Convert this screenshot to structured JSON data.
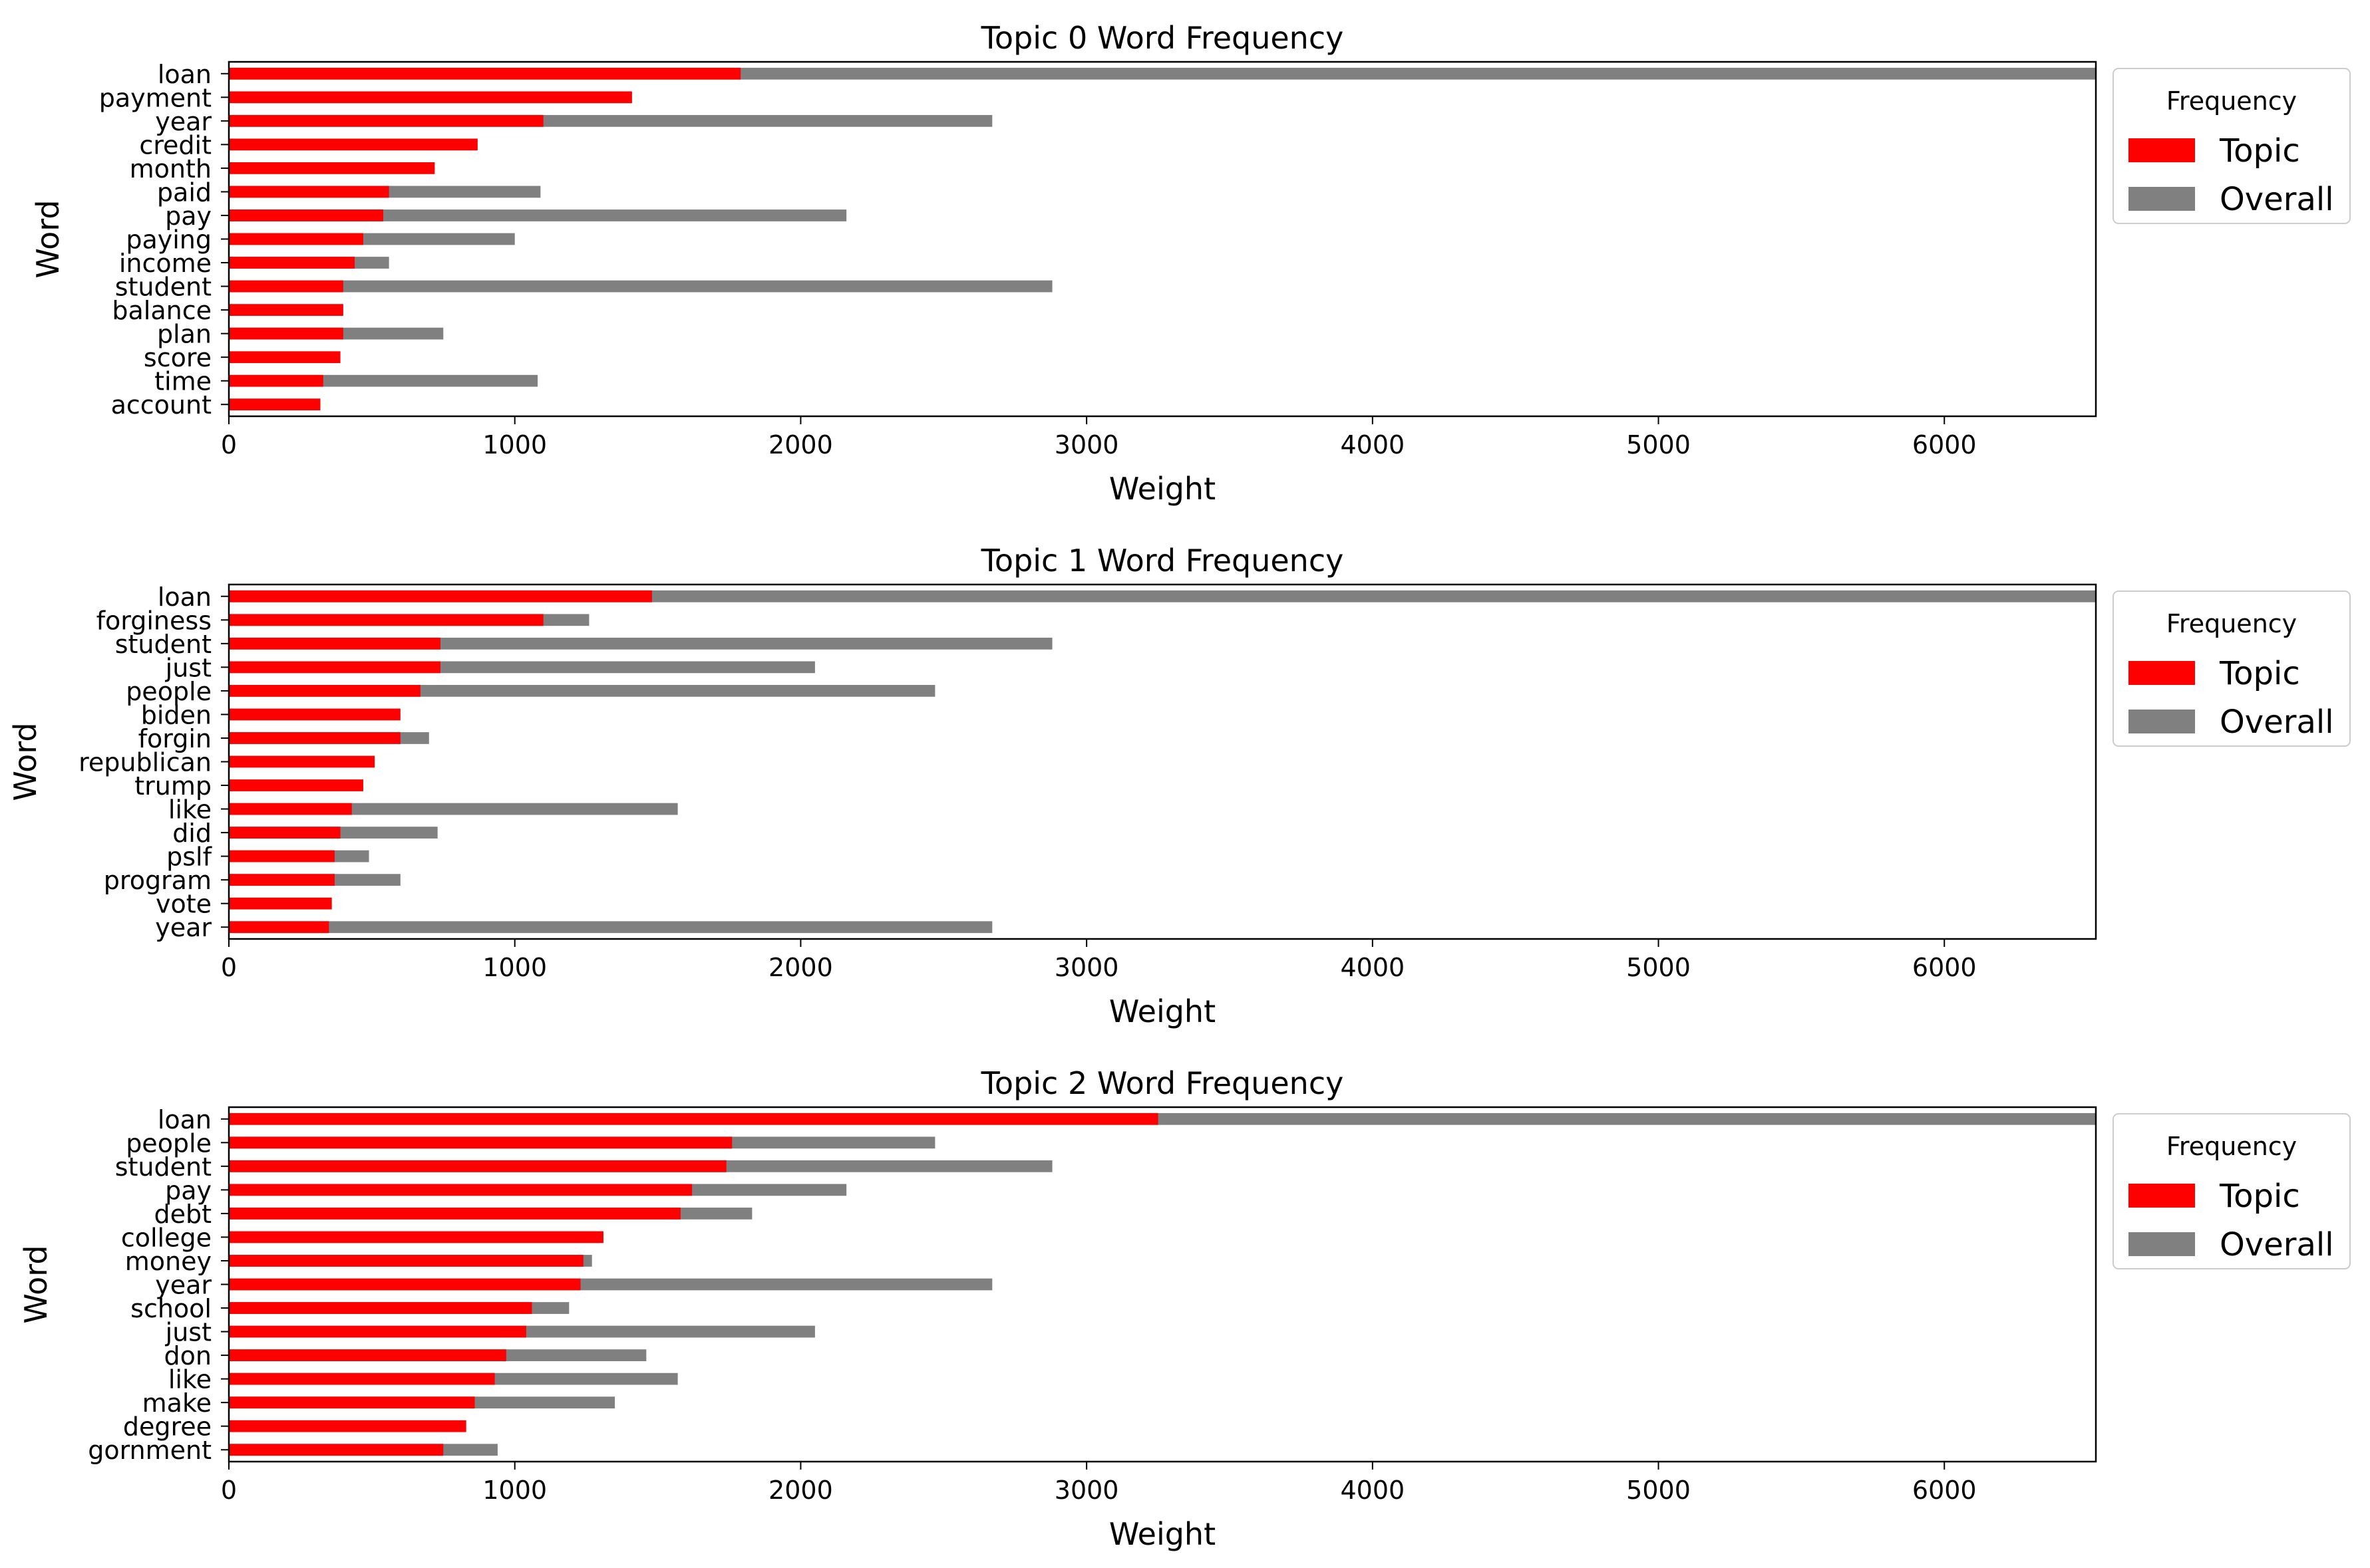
{
  "colors": {
    "topic": "#ff0000",
    "overall": "#808080",
    "axis": "#000000",
    "legend_border": "#cccccc"
  },
  "legend": {
    "title": "Frequency",
    "entries": [
      "Topic",
      "Overall"
    ]
  },
  "chart_data": [
    {
      "type": "bar",
      "orientation": "horizontal",
      "stacking": "overlay",
      "title": "Topic 0 Word Frequency",
      "xlabel": "Weight",
      "ylabel": "Word",
      "xlim": [
        0,
        6530
      ],
      "xticks": [
        0,
        1000,
        2000,
        3000,
        4000,
        5000,
        6000
      ],
      "legend_position": "right, upper",
      "categories": [
        "loan",
        "payment",
        "year",
        "credit",
        "month",
        "paid",
        "pay",
        "paying",
        "income",
        "student",
        "balance",
        "plan",
        "score",
        "time",
        "account"
      ],
      "series": [
        {
          "name": "Topic",
          "values": [
            1790,
            1410,
            1100,
            870,
            720,
            560,
            540,
            470,
            440,
            400,
            400,
            400,
            390,
            330,
            320
          ]
        },
        {
          "name": "Overall",
          "values": [
            6530,
            0,
            2670,
            0,
            0,
            1090,
            2160,
            1000,
            560,
            2880,
            0,
            750,
            0,
            1080,
            0
          ]
        }
      ]
    },
    {
      "type": "bar",
      "orientation": "horizontal",
      "stacking": "overlay",
      "title": "Topic 1 Word Frequency",
      "xlabel": "Weight",
      "ylabel": "Word",
      "xlim": [
        0,
        6530
      ],
      "xticks": [
        0,
        1000,
        2000,
        3000,
        4000,
        5000,
        6000
      ],
      "legend_position": "right, upper",
      "categories": [
        "loan",
        "forginess",
        "student",
        "just",
        "people",
        "biden",
        "forgin",
        "republican",
        "trump",
        "like",
        "did",
        "pslf",
        "program",
        "vote",
        "year"
      ],
      "series": [
        {
          "name": "Topic",
          "values": [
            1480,
            1100,
            740,
            740,
            670,
            600,
            600,
            510,
            470,
            430,
            390,
            370,
            370,
            360,
            350
          ]
        },
        {
          "name": "Overall",
          "values": [
            6530,
            1260,
            2880,
            2050,
            2470,
            0,
            700,
            0,
            0,
            1570,
            730,
            490,
            600,
            0,
            2670
          ]
        }
      ]
    },
    {
      "type": "bar",
      "orientation": "horizontal",
      "stacking": "overlay",
      "title": "Topic 2 Word Frequency",
      "xlabel": "Weight",
      "ylabel": "Word",
      "xlim": [
        0,
        6530
      ],
      "xticks": [
        0,
        1000,
        2000,
        3000,
        4000,
        5000,
        6000
      ],
      "legend_position": "right, upper",
      "categories": [
        "loan",
        "people",
        "student",
        "pay",
        "debt",
        "college",
        "money",
        "year",
        "school",
        "just",
        "don",
        "like",
        "make",
        "degree",
        "gornment"
      ],
      "series": [
        {
          "name": "Topic",
          "values": [
            3250,
            1760,
            1740,
            1620,
            1580,
            1310,
            1240,
            1230,
            1060,
            1040,
            970,
            930,
            860,
            830,
            750
          ]
        },
        {
          "name": "Overall",
          "values": [
            6530,
            2470,
            2880,
            2160,
            1830,
            0,
            1270,
            2670,
            1190,
            2050,
            1460,
            1570,
            1350,
            0,
            940
          ]
        }
      ]
    }
  ]
}
